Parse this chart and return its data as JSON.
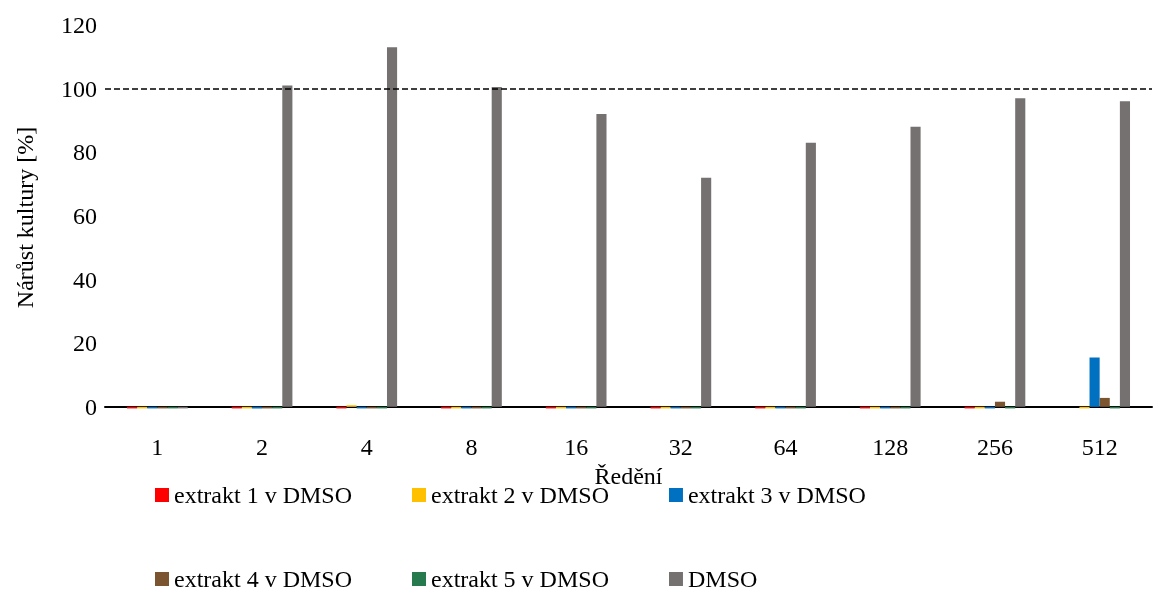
{
  "chart_data": {
    "type": "bar",
    "xlabel": "Ředění",
    "ylabel": "Nárůst kultury [%]",
    "categories": [
      "1",
      "2",
      "4",
      "8",
      "16",
      "32",
      "64",
      "128",
      "256",
      "512"
    ],
    "series": [
      {
        "name": "extrakt 1 v DMSO",
        "color": "#ff0000",
        "values": [
          -0.5,
          -0.5,
          -0.5,
          -0.5,
          -0.5,
          -0.5,
          -0.5,
          -0.5,
          -0.5,
          0
        ]
      },
      {
        "name": "extrakt 2 v DMSO",
        "color": "#ffc000",
        "values": [
          -0.5,
          -0.5,
          0.5,
          -0.5,
          -0.5,
          -0.5,
          -0.5,
          -0.5,
          -0.5,
          -0.5
        ]
      },
      {
        "name": "extrakt 3 v DMSO",
        "color": "#0070c0",
        "values": [
          -0.5,
          -0.5,
          -0.5,
          -0.5,
          -0.5,
          -0.5,
          -0.5,
          -0.5,
          -0.5,
          15.5
        ]
      },
      {
        "name": "extrakt 4 v DMSO",
        "color": "#7b5430",
        "values": [
          -0.5,
          -0.5,
          -0.5,
          -0.5,
          -0.5,
          -0.5,
          -0.5,
          -0.5,
          1.6,
          2.8
        ]
      },
      {
        "name": "extrakt 5 v DMSO",
        "color": "#267a4e",
        "values": [
          -0.5,
          -0.5,
          -0.5,
          -0.5,
          -0.5,
          -0.5,
          -0.5,
          -0.5,
          -0.5,
          -0.5
        ]
      },
      {
        "name": "DMSO",
        "color": "#767171",
        "values": [
          -0.5,
          101,
          113,
          100.5,
          92,
          72,
          83,
          88,
          97,
          96
        ]
      }
    ],
    "ylim": [
      -1,
      120
    ],
    "yticks": [
      0,
      20,
      40,
      60,
      80,
      100,
      120
    ],
    "grid": false,
    "legend": "bottom",
    "ref_lines": [
      {
        "axis": "y",
        "value": 100,
        "color": "#000000",
        "line_style": "dashed"
      }
    ]
  }
}
